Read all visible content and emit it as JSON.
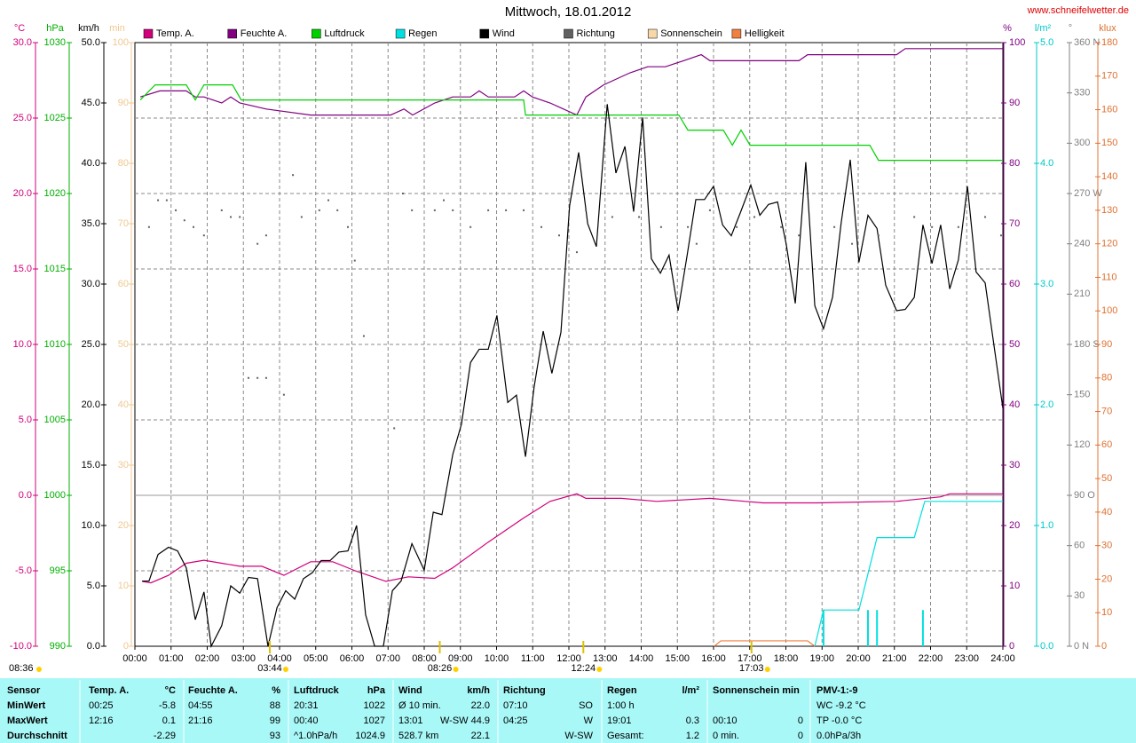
{
  "chart_data": {
    "type": "line",
    "title": "Mittwoch, 18.01.2012",
    "source": "www.schneifelwetter.de",
    "xlim": [
      0,
      24
    ],
    "xticks": [
      {
        "value": 0,
        "label": "00:00"
      },
      {
        "value": 1,
        "label": "01:00"
      },
      {
        "value": 2,
        "label": "02:00"
      },
      {
        "value": 3,
        "label": "03:00"
      },
      {
        "value": 4,
        "label": "04:00"
      },
      {
        "value": 5,
        "label": "05:00"
      },
      {
        "value": 6,
        "label": "06:00"
      },
      {
        "value": 7,
        "label": "07:00"
      },
      {
        "value": 8,
        "label": "08:00"
      },
      {
        "value": 9,
        "label": "09:00"
      },
      {
        "value": 10,
        "label": "10:00"
      },
      {
        "value": 11,
        "label": "11:00"
      },
      {
        "value": 12,
        "label": "12:00"
      },
      {
        "value": 13,
        "label": "13:00"
      },
      {
        "value": 14,
        "label": "14:00"
      },
      {
        "value": 15,
        "label": "15:00"
      },
      {
        "value": 16,
        "label": "16:00"
      },
      {
        "value": 17,
        "label": "17:00"
      },
      {
        "value": 18,
        "label": "18:00"
      },
      {
        "value": 19,
        "label": "19:00"
      },
      {
        "value": 20,
        "label": "20:00"
      },
      {
        "value": 21,
        "label": "21:00"
      },
      {
        "value": 22,
        "label": "22:00"
      },
      {
        "value": 23,
        "label": "23:00"
      },
      {
        "value": 24,
        "label": "24:00"
      }
    ],
    "grid": true,
    "grid_axis": "temp",
    "axes": {
      "temp": {
        "unit": "°C",
        "color": "#d0007a",
        "side": "left",
        "ylim": [
          -10,
          30
        ],
        "yticks": [
          {
            "value": -10,
            "label": "-10.0"
          },
          {
            "value": -5,
            "label": "-5.0"
          },
          {
            "value": 0,
            "label": "0.0"
          },
          {
            "value": 5,
            "label": "5.0"
          },
          {
            "value": 10,
            "label": "10.0"
          },
          {
            "value": 15,
            "label": "15.0"
          },
          {
            "value": 20,
            "label": "20.0"
          },
          {
            "value": 25,
            "label": "25.0"
          },
          {
            "value": 30,
            "label": "30.0"
          }
        ]
      },
      "press": {
        "unit": "hPa",
        "color": "#00b000",
        "side": "left",
        "ylim": [
          990,
          1030
        ],
        "yticks": [
          990,
          995,
          1000,
          1005,
          1010,
          1015,
          1020,
          1025,
          1030
        ]
      },
      "wind": {
        "unit": "km/h",
        "color": "#000000",
        "side": "left",
        "ylim": [
          0,
          50
        ],
        "yticks": [
          {
            "value": 0,
            "label": "0.0"
          },
          {
            "value": 5,
            "label": "5.0"
          },
          {
            "value": 10,
            "label": "10.0"
          },
          {
            "value": 15,
            "label": "15.0"
          },
          {
            "value": 20,
            "label": "20.0"
          },
          {
            "value": 25,
            "label": "25.0"
          },
          {
            "value": 30,
            "label": "30.0"
          },
          {
            "value": 35,
            "label": "35.0"
          },
          {
            "value": 40,
            "label": "40.0"
          },
          {
            "value": 45,
            "label": "45.0"
          },
          {
            "value": 50,
            "label": "50.0"
          }
        ]
      },
      "sun": {
        "unit": "min",
        "color": "#f0c890",
        "side": "left",
        "ylim": [
          0,
          100
        ],
        "yticks": [
          0,
          10,
          20,
          30,
          40,
          50,
          60,
          70,
          80,
          90,
          100
        ]
      },
      "hum": {
        "unit": "%",
        "color": "#800080",
        "side": "right",
        "ylim": [
          0,
          100
        ],
        "yticks": [
          0,
          10,
          20,
          30,
          40,
          50,
          60,
          70,
          80,
          90,
          100
        ]
      },
      "rain": {
        "unit": "l/m²",
        "color": "#00c8c8",
        "side": "right",
        "ylim": [
          0,
          5
        ],
        "yticks": [
          {
            "value": 0,
            "label": "0.0"
          },
          {
            "value": 1,
            "label": "1.0"
          },
          {
            "value": 2,
            "label": "2.0"
          },
          {
            "value": 3,
            "label": "3.0"
          },
          {
            "value": 4,
            "label": "4.0"
          },
          {
            "value": 5,
            "label": "5.0"
          }
        ]
      },
      "dir": {
        "unit": "°",
        "color": "#808080",
        "side": "right",
        "ylim": [
          0,
          360
        ],
        "yticks": [
          {
            "value": 0,
            "label": "0 N"
          },
          30,
          60,
          {
            "value": 90,
            "label": "90 O"
          },
          120,
          150,
          {
            "value": 180,
            "label": "180 S"
          },
          210,
          240,
          {
            "value": 270,
            "label": "270 W"
          },
          300,
          330,
          {
            "value": 360,
            "label": "360 N"
          }
        ]
      },
      "lux": {
        "unit": "klux",
        "color": "#e07030",
        "side": "right",
        "ylim": [
          0,
          180
        ],
        "yticks": [
          0,
          10,
          20,
          30,
          40,
          50,
          60,
          70,
          80,
          90,
          100,
          110,
          120,
          130,
          140,
          150,
          160,
          170,
          180
        ]
      }
    },
    "series": [
      {
        "name": "Temp. A.",
        "color": "#d0007a",
        "axis": "temp",
        "style": "line",
        "x": [
          0.2,
          0.44,
          0.93,
          1.42,
          1.91,
          2.4,
          2.9,
          3.51,
          4.12,
          4.86,
          5.47,
          6.09,
          6.94,
          7.56,
          8.29,
          8.79,
          9.77,
          10.75,
          11.48,
          12.22,
          12.47,
          13.45,
          14.43,
          15.9,
          16.88,
          17.37,
          18.85,
          21.06,
          22.28,
          22.53,
          24.0
        ],
        "values": [
          -5.7,
          -5.8,
          -5.3,
          -4.5,
          -4.3,
          -4.5,
          -4.7,
          -4.7,
          -5.3,
          -4.4,
          -4.4,
          -5.0,
          -5.7,
          -5.4,
          -5.5,
          -4.8,
          -3.1,
          -1.5,
          -0.4,
          0.1,
          -0.2,
          -0.2,
          -0.4,
          -0.2,
          -0.4,
          -0.5,
          -0.5,
          -0.4,
          -0.1,
          0.1,
          0.1
        ]
      },
      {
        "name": "Feuchte A.",
        "color": "#800080",
        "axis": "hum",
        "style": "line",
        "x": [
          0.15,
          0.69,
          1.42,
          1.67,
          1.91,
          2.4,
          2.65,
          2.9,
          3.63,
          4.86,
          7.07,
          7.44,
          7.68,
          8.29,
          8.79,
          9.28,
          9.52,
          9.77,
          10.5,
          10.75,
          10.99,
          11.48,
          12.22,
          12.47,
          12.96,
          13.69,
          14.18,
          14.67,
          15.17,
          15.66,
          15.9,
          18.36,
          18.6,
          21.06,
          21.3,
          24.0
        ],
        "values": [
          91,
          92,
          92,
          91,
          91,
          90,
          91,
          90,
          89,
          88,
          88,
          89,
          88,
          90,
          91,
          91,
          92,
          91,
          91,
          92,
          91,
          90,
          88,
          91,
          93,
          95,
          96,
          96,
          97,
          98,
          97,
          97,
          98,
          98,
          99,
          99
        ]
      },
      {
        "name": "Luftdruck",
        "color": "#00d000",
        "axis": "press",
        "style": "line",
        "x": [
          0.15,
          0.56,
          1.42,
          1.67,
          1.91,
          2.7,
          2.94,
          10.75,
          10.8,
          15.04,
          15.29,
          16.27,
          16.52,
          16.76,
          17.01,
          20.32,
          20.56,
          24.0
        ],
        "values": [
          1026.2,
          1027.2,
          1027.2,
          1026.2,
          1027.2,
          1027.2,
          1026.2,
          1026.2,
          1025.2,
          1025.2,
          1024.2,
          1024.2,
          1023.2,
          1024.2,
          1023.2,
          1023.2,
          1022.2,
          1022.2
        ]
      },
      {
        "name": "Regen",
        "color": "#00e0e0",
        "axis": "rain",
        "style": "line",
        "x": [
          18.8,
          19.04,
          20.02,
          20.52,
          21.55,
          21.84,
          24.0
        ],
        "values": [
          0,
          0.3,
          0.3,
          0.9,
          0.9,
          1.2,
          1.2
        ],
        "bars": {
          "x": [
            19.04,
            20.27,
            20.52,
            21.79
          ],
          "values": [
            0.3,
            0.3,
            0.3,
            0.3
          ]
        }
      },
      {
        "name": "Wind",
        "color": "#000000",
        "axis": "wind",
        "style": "line",
        "x": [
          0.2,
          0.39,
          0.64,
          0.93,
          1.18,
          1.42,
          1.67,
          1.91,
          2.11,
          2.4,
          2.65,
          2.9,
          3.14,
          3.39,
          3.68,
          3.93,
          4.17,
          4.42,
          4.66,
          4.91,
          5.15,
          5.4,
          5.64,
          5.89,
          6.13,
          6.38,
          6.63,
          6.87,
          7.12,
          7.36,
          7.66,
          8.0,
          8.25,
          8.49,
          8.79,
          9.03,
          9.28,
          9.52,
          9.77,
          10.01,
          10.31,
          10.55,
          10.8,
          11.04,
          11.29,
          11.53,
          11.78,
          12.02,
          12.27,
          12.52,
          12.76,
          13.06,
          13.3,
          13.55,
          13.79,
          14.04,
          14.28,
          14.53,
          14.77,
          15.02,
          15.26,
          15.51,
          15.75,
          16.0,
          16.25,
          16.49,
          16.74,
          17.03,
          17.28,
          17.52,
          17.77,
          18.01,
          18.26,
          18.55,
          18.8,
          19.04,
          19.29,
          19.53,
          19.78,
          20.02,
          20.27,
          20.52,
          20.76,
          21.06,
          21.3,
          21.55,
          21.79,
          22.04,
          22.28,
          22.53,
          22.77,
          23.02,
          23.26,
          23.51,
          24.0
        ],
        "values": [
          5.4,
          5.4,
          7.6,
          8.2,
          7.9,
          6.5,
          2.2,
          4.5,
          0,
          1.7,
          5.0,
          4.4,
          5.7,
          5.6,
          0,
          3.2,
          4.6,
          3.9,
          5.6,
          6.1,
          7.1,
          7.1,
          7.8,
          7.9,
          10.0,
          2.6,
          0,
          0,
          4.6,
          5.4,
          8.5,
          6.3,
          11.1,
          10.9,
          15.9,
          18.4,
          23.5,
          24.6,
          24.6,
          27.4,
          20.2,
          20.8,
          15.7,
          21.5,
          26.1,
          22.6,
          26.0,
          36.5,
          40.9,
          35.0,
          33.1,
          44.9,
          39.2,
          41.4,
          36.0,
          43.8,
          32.1,
          30.9,
          32.4,
          27.8,
          32.2,
          37.0,
          37.0,
          38.1,
          34.9,
          34.0,
          35.9,
          38.2,
          35.7,
          36.6,
          36.8,
          33.3,
          28.4,
          40.1,
          28.2,
          26.3,
          28.9,
          35.1,
          40.3,
          31.8,
          35.7,
          34.6,
          29.9,
          27.8,
          27.9,
          28.9,
          34.9,
          31.7,
          34.9,
          29.6,
          32.0,
          38.1,
          31.0,
          30.1,
          19.7
        ]
      },
      {
        "name": "Richtung",
        "color": "#606060",
        "axis": "dir",
        "style": "dots",
        "x": [
          0.39,
          0.64,
          0.88,
          1.13,
          1.37,
          1.62,
          1.91,
          2.4,
          2.65,
          2.9,
          3.14,
          3.39,
          3.39,
          3.63,
          3.63,
          4.12,
          4.37,
          4.61,
          5.1,
          5.35,
          5.6,
          5.89,
          6.08,
          6.33,
          7.17,
          7.41,
          7.66,
          8.29,
          8.54,
          8.79,
          9.28,
          9.77,
          10.26,
          10.75,
          11.24,
          11.73,
          12.22,
          12.47,
          13.2,
          13.94,
          14.55,
          15.29,
          15.53,
          15.9,
          16.64,
          17.13,
          17.87,
          18.36,
          19.34,
          19.83,
          20.56,
          21.55,
          22.04,
          22.77,
          23.51,
          23.95
        ],
        "values": [
          250,
          266,
          266,
          260,
          254,
          250,
          245,
          260,
          256,
          256,
          160,
          160,
          240,
          160,
          245,
          150,
          281,
          256,
          260,
          266,
          260,
          250,
          230,
          185,
          130,
          270,
          260,
          260,
          266,
          260,
          250,
          260,
          260,
          260,
          250,
          245,
          235,
          260,
          256,
          256,
          250,
          250,
          240,
          260,
          250,
          256,
          250,
          245,
          250,
          240,
          245,
          256,
          250,
          250,
          256,
          245
        ]
      },
      {
        "name": "Sonnenschein",
        "color": "#f8d8a8",
        "axis": "sun",
        "style": "none"
      },
      {
        "name": "Helligkeit",
        "color": "#f08040",
        "axis": "lux",
        "style": "line",
        "x": [
          16.02,
          16.2,
          18.6,
          18.8
        ],
        "values": [
          0,
          1.6,
          1.6,
          0
        ]
      }
    ],
    "left_note": "08:36",
    "events": [
      {
        "x": 3.73,
        "label": "03:44"
      },
      {
        "x": 8.43,
        "label": "08:26"
      },
      {
        "x": 12.4,
        "label": "12:24"
      },
      {
        "x": 17.05,
        "label": "17:03"
      }
    ]
  },
  "table": {
    "rows": [
      [
        "Sensor",
        "Temp. A.",
        "°C",
        "Feuchte A.",
        "%",
        "Luftdruck",
        "hPa",
        "Wind",
        "km/h",
        "Richtung",
        null,
        "Regen",
        "l/m²",
        "Sonnenschein min",
        null,
        "PMV-1:-9"
      ],
      [
        "MinWert",
        "00:25",
        "-5.8",
        "04:55",
        "88",
        "20:31",
        "1022",
        "Ø 10 min.",
        "22.0",
        "07:10",
        "SO",
        "1:00 h",
        null,
        null,
        null,
        "WC -9.2 °C"
      ],
      [
        "MaxWert",
        "12:16",
        "0.1",
        "21:16",
        "99",
        "00:40",
        "1027",
        "13:01",
        "W-SW 44.9",
        "04:25",
        "W",
        "19:01",
        "0.3",
        "00:10",
        "0",
        "TP -0.0 °C"
      ],
      [
        "Durchschnitt",
        null,
        "-2.29",
        null,
        "93",
        "^1.0hPa/h",
        "1024.9",
        "528.7 km",
        "22.1",
        null,
        "W-SW",
        "Gesamt:",
        "1.2",
        "0 min.",
        "0",
        "0.0hPa/3h"
      ]
    ]
  }
}
